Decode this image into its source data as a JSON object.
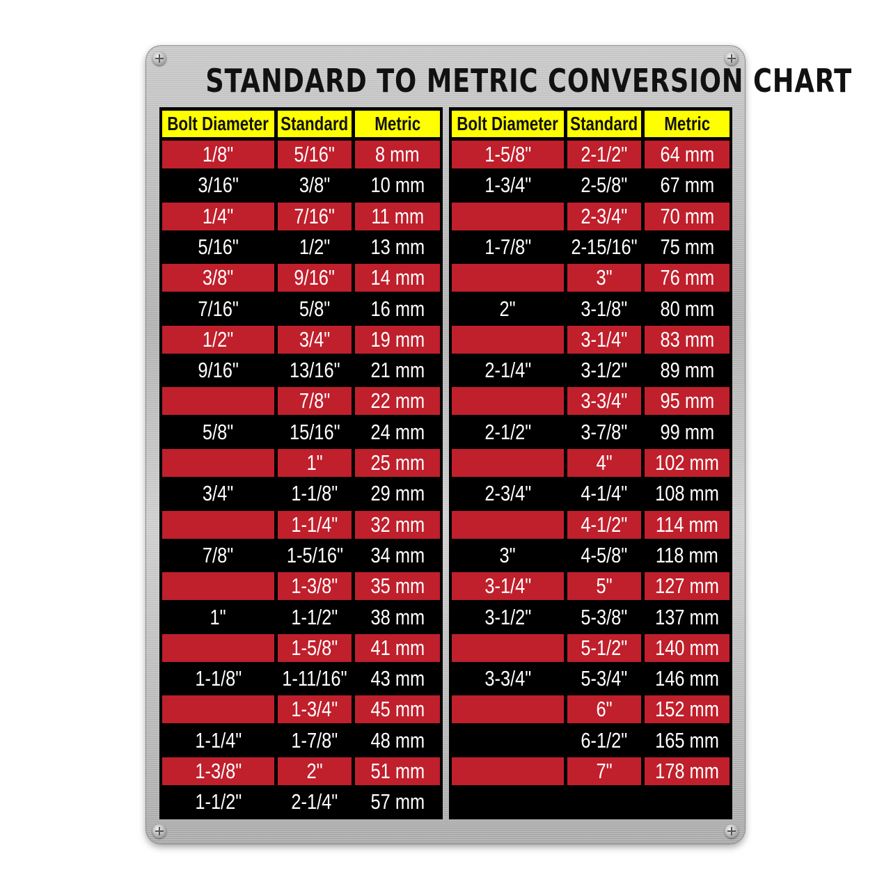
{
  "title": "STANDARD TO METRIC CONVERSION CHART",
  "colors": {
    "header_bg": "#ffff00",
    "row_red": "#c01f2c",
    "row_black": "#000000",
    "plate": "#b8b8b8"
  },
  "chart_data": {
    "type": "table",
    "title": "STANDARD TO METRIC CONVERSION CHART",
    "columns": [
      "Bolt Diameter",
      "Standard",
      "Metric"
    ],
    "tables": [
      {
        "rows": [
          [
            "1/8\"",
            "5/16\"",
            "8 mm"
          ],
          [
            "3/16\"",
            "3/8\"",
            "10 mm"
          ],
          [
            "1/4\"",
            "7/16\"",
            "11 mm"
          ],
          [
            "5/16\"",
            "1/2\"",
            "13 mm"
          ],
          [
            "3/8\"",
            "9/16\"",
            "14 mm"
          ],
          [
            "7/16\"",
            "5/8\"",
            "16 mm"
          ],
          [
            "1/2\"",
            "3/4\"",
            "19 mm"
          ],
          [
            "9/16\"",
            "13/16\"",
            "21 mm"
          ],
          [
            "",
            "7/8\"",
            "22 mm"
          ],
          [
            "5/8\"",
            "15/16\"",
            "24 mm"
          ],
          [
            "",
            "1\"",
            "25 mm"
          ],
          [
            "3/4\"",
            "1-1/8\"",
            "29 mm"
          ],
          [
            "",
            "1-1/4\"",
            "32 mm"
          ],
          [
            "7/8\"",
            "1-5/16\"",
            "34 mm"
          ],
          [
            "",
            "1-3/8\"",
            "35 mm"
          ],
          [
            "1\"",
            "1-1/2\"",
            "38 mm"
          ],
          [
            "",
            "1-5/8\"",
            "41 mm"
          ],
          [
            "1-1/8\"",
            "1-11/16\"",
            "43 mm"
          ],
          [
            "",
            "1-3/4\"",
            "45 mm"
          ],
          [
            "1-1/4\"",
            "1-7/8\"",
            "48 mm"
          ],
          [
            "1-3/8\"",
            "2\"",
            "51 mm"
          ],
          [
            "1-1/2\"",
            "2-1/4\"",
            "57 mm"
          ]
        ]
      },
      {
        "rows": [
          [
            "1-5/8\"",
            "2-1/2\"",
            "64 mm"
          ],
          [
            "1-3/4\"",
            "2-5/8\"",
            "67 mm"
          ],
          [
            "",
            "2-3/4\"",
            "70 mm"
          ],
          [
            "1-7/8\"",
            "2-15/16\"",
            "75 mm"
          ],
          [
            "",
            "3\"",
            "76 mm"
          ],
          [
            "2\"",
            "3-1/8\"",
            "80 mm"
          ],
          [
            "",
            "3-1/4\"",
            "83 mm"
          ],
          [
            "2-1/4\"",
            "3-1/2\"",
            "89 mm"
          ],
          [
            "",
            "3-3/4\"",
            "95 mm"
          ],
          [
            "2-1/2\"",
            "3-7/8\"",
            "99 mm"
          ],
          [
            "",
            "4\"",
            "102 mm"
          ],
          [
            "2-3/4\"",
            "4-1/4\"",
            "108 mm"
          ],
          [
            "",
            "4-1/2\"",
            "114 mm"
          ],
          [
            "3\"",
            "4-5/8\"",
            "118 mm"
          ],
          [
            "3-1/4\"",
            "5\"",
            "127 mm"
          ],
          [
            "3-1/2\"",
            "5-3/8\"",
            "137 mm"
          ],
          [
            "",
            "5-1/2\"",
            "140 mm"
          ],
          [
            "3-3/4\"",
            "5-3/4\"",
            "146 mm"
          ],
          [
            "",
            "6\"",
            "152 mm"
          ],
          [
            "",
            "6-1/2\"",
            "165 mm"
          ],
          [
            "",
            "7\"",
            "178 mm"
          ]
        ]
      }
    ]
  }
}
